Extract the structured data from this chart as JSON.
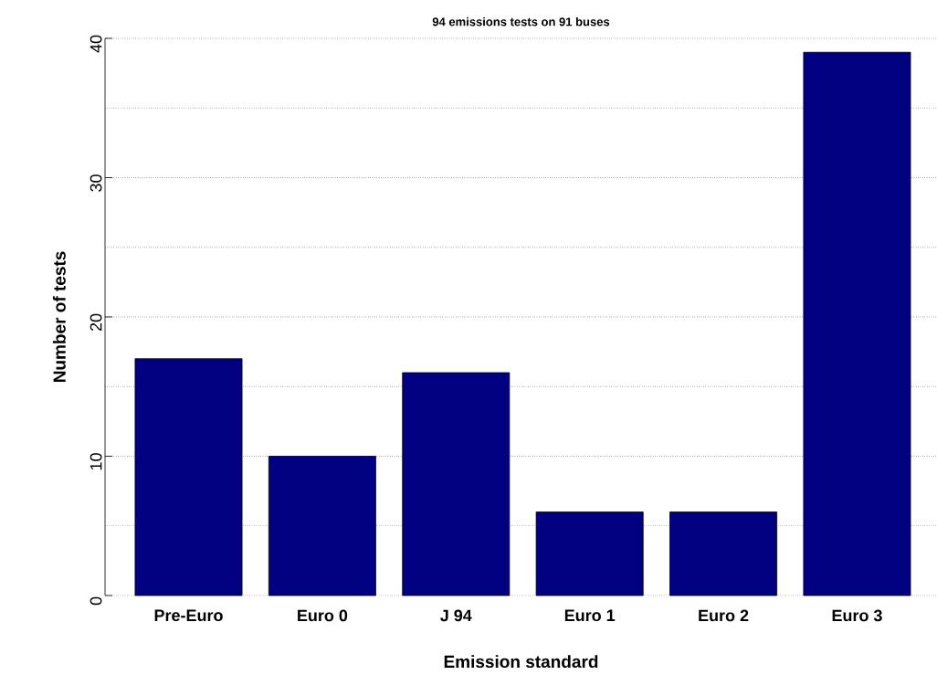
{
  "chart_data": {
    "type": "bar",
    "title": "94 emissions tests on 91 buses",
    "xlabel": "Emission standard",
    "ylabel": "Number of tests",
    "categories": [
      "Pre-Euro",
      "Euro 0",
      "J 94",
      "Euro 1",
      "Euro 2",
      "Euro 3"
    ],
    "values": [
      17,
      10,
      16,
      6,
      6,
      39
    ],
    "color": "#000080",
    "ylim": [
      0,
      40
    ],
    "yticks": [
      0,
      {
        "value": 5,
        "label": null
      },
      10,
      {
        "value": 15,
        "label": null
      },
      20,
      {
        "value": 25,
        "label": null
      },
      30,
      {
        "value": 35,
        "label": null
      },
      40
    ],
    "grid": "y"
  }
}
